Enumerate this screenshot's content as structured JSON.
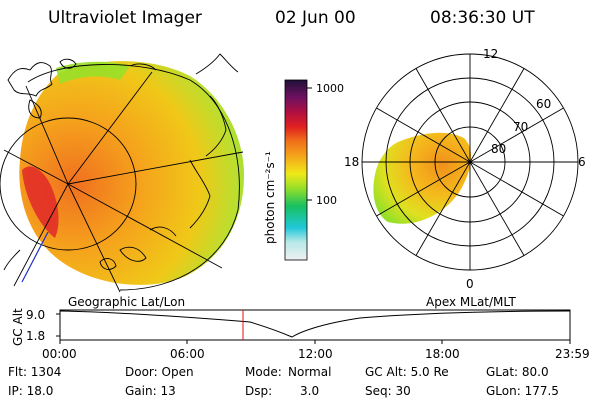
{
  "header": {
    "title": "Ultraviolet Imager",
    "date": "02 Jun 00",
    "time": "08:36:30 UT"
  },
  "colorbar": {
    "unit_label": "photon cm⁻²s⁻¹",
    "ticks": [
      "1000",
      "100"
    ]
  },
  "left_panel": {
    "caption": "Geographic Lat/Lon"
  },
  "right_panel": {
    "caption": "Apex MLat/MLT",
    "mlt_labels": [
      "12",
      "18",
      "6",
      "0"
    ],
    "lat_labels": [
      "60",
      "70",
      "80"
    ]
  },
  "altitude_plot": {
    "ylabel": "GC Alt",
    "yticks": [
      "9.0",
      "1.8"
    ],
    "xticks": [
      "00:00",
      "06:00",
      "12:00",
      "18:00",
      "23:59"
    ]
  },
  "info": {
    "flt": "Flt: 1304",
    "ip": "IP: 18.0",
    "door": "Door: Open",
    "gain": "Gain: 13",
    "mode_label": "Mode:",
    "mode_value": "Normal",
    "dsp_label": "Dsp:",
    "dsp_value": "3.0",
    "gcalt": "GC Alt: 5.0 Re",
    "seq": "Seq: 30",
    "glat": "GLat:  80.0",
    "glon": "GLon: 177.5"
  },
  "colors": {
    "auroral_low": "#7fd83a",
    "auroral_mid": "#f5a31c",
    "auroral_high": "#e02020",
    "marker": "#e01010"
  }
}
